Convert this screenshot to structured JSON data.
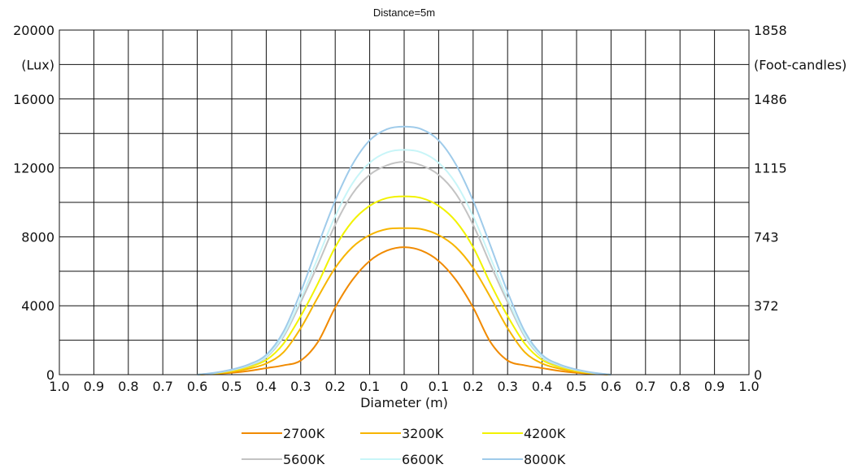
{
  "chart_data": {
    "type": "line",
    "title": "Distance=5m",
    "xlabel": "Diameter (m)",
    "ylabel_left": "(Lux)",
    "ylabel_right": "(Foot-candles)",
    "x_tick_labels": [
      "1.0",
      "0.9",
      "0.8",
      "0.7",
      "0.6",
      "0.5",
      "0.4",
      "0.3",
      "0.2",
      "0.1",
      "0",
      "0.1",
      "0.2",
      "0.3",
      "0.4",
      "0.5",
      "0.6",
      "0.7",
      "0.8",
      "0.9",
      "1.0"
    ],
    "x_range": [
      -1.0,
      1.0
    ],
    "y_left_ticks": [
      0,
      4000,
      8000,
      12000,
      16000,
      20000
    ],
    "y_left_tick_labels": [
      "0",
      "4000",
      "8000",
      "12000",
      "16000",
      "20000"
    ],
    "y_right_tick_labels": [
      "0",
      "372",
      "743",
      "1115",
      "1486",
      "1858"
    ],
    "ylim": [
      0,
      20000
    ],
    "grid": true,
    "legend_position": "bottom",
    "x": [
      -0.6,
      -0.55,
      -0.5,
      -0.45,
      -0.4,
      -0.35,
      -0.3,
      -0.25,
      -0.2,
      -0.15,
      -0.1,
      -0.05,
      0.0,
      0.05,
      0.1,
      0.15,
      0.2,
      0.25,
      0.3,
      0.35,
      0.4,
      0.45,
      0.5,
      0.55,
      0.6
    ],
    "series": [
      {
        "name": "2700K",
        "color": "#F08A00",
        "values": [
          0,
          40,
          110,
          220,
          380,
          540,
          820,
          1900,
          3900,
          5500,
          6600,
          7200,
          7400,
          7200,
          6600,
          5500,
          3900,
          1900,
          820,
          540,
          380,
          220,
          110,
          40,
          0
        ]
      },
      {
        "name": "3200K",
        "color": "#F7B500",
        "values": [
          0,
          60,
          170,
          350,
          650,
          1300,
          2700,
          4500,
          6200,
          7400,
          8100,
          8450,
          8500,
          8450,
          8100,
          7400,
          6200,
          4500,
          2700,
          1300,
          650,
          350,
          170,
          60,
          0
        ]
      },
      {
        "name": "4200K",
        "color": "#F2F200",
        "values": [
          0,
          80,
          220,
          450,
          850,
          1800,
          3400,
          5300,
          7400,
          8900,
          9800,
          10250,
          10350,
          10250,
          9800,
          8900,
          7400,
          5300,
          3400,
          1800,
          850,
          450,
          220,
          80,
          0
        ]
      },
      {
        "name": "5600K",
        "color": "#C3C3C3",
        "values": [
          0,
          90,
          260,
          520,
          1000,
          2200,
          4200,
          6400,
          8700,
          10500,
          11600,
          12150,
          12350,
          12150,
          11600,
          10500,
          8700,
          6400,
          4200,
          2200,
          1000,
          520,
          260,
          90,
          0
        ]
      },
      {
        "name": "6600K",
        "color": "#C8F5F8",
        "values": [
          0,
          100,
          280,
          560,
          1050,
          2300,
          4400,
          6800,
          9200,
          11100,
          12300,
          12900,
          13050,
          12900,
          12300,
          11100,
          9200,
          6800,
          4400,
          2300,
          1050,
          560,
          280,
          100,
          0
        ]
      },
      {
        "name": "8000K",
        "color": "#9FCBEA",
        "values": [
          0,
          110,
          300,
          600,
          1150,
          2500,
          4800,
          7500,
          10100,
          12200,
          13600,
          14250,
          14400,
          14250,
          13600,
          12200,
          10100,
          7500,
          4800,
          2500,
          1150,
          600,
          300,
          110,
          0
        ]
      }
    ]
  }
}
